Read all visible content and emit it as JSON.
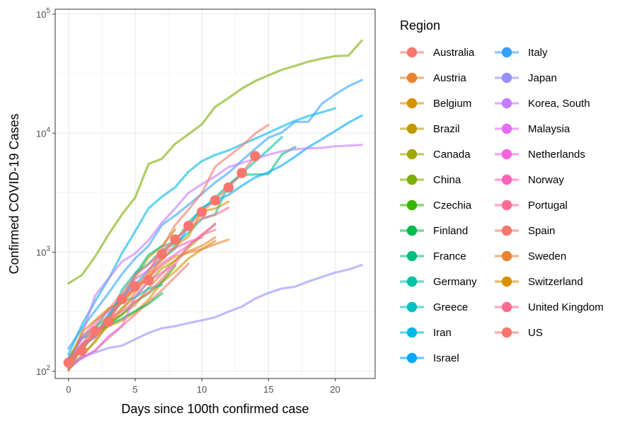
{
  "chart_data": {
    "type": "line",
    "xlabel": "Days since 100th confirmed case",
    "ylabel": "Confirmed COVID-19 Cases",
    "yscale": "log10",
    "xlim": [
      -1,
      23
    ],
    "ylim": [
      87,
      110000
    ],
    "x_ticks": [
      0,
      5,
      10,
      15,
      20
    ],
    "y_ticks": [
      {
        "value": 100,
        "base": "10",
        "exp": "2"
      },
      {
        "value": 1000,
        "base": "10",
        "exp": "3"
      },
      {
        "value": 10000,
        "base": "10",
        "exp": "4"
      },
      {
        "value": 100000,
        "base": "10",
        "exp": "5"
      }
    ],
    "grid": true,
    "legend": {
      "title": "Region",
      "placement": "right",
      "columns": 2
    },
    "series": [
      {
        "name": "Australia",
        "color": "#F8766D",
        "x": [
          0,
          1,
          2,
          3,
          4,
          5,
          6,
          7,
          8,
          9
        ],
        "y": [
          112,
          128,
          150,
          190,
          240,
          300,
          380,
          480,
          620,
          800
        ]
      },
      {
        "name": "Austria",
        "color": "#EA8331",
        "x": [
          0,
          1,
          2,
          3,
          4,
          5,
          6,
          7,
          8,
          9,
          10,
          11
        ],
        "y": [
          104,
          131,
          182,
          246,
          302,
          361,
          504,
          655,
          860,
          1018,
          1132,
          1332
        ]
      },
      {
        "name": "Belgium",
        "color": "#D89000",
        "x": [
          0,
          1,
          2,
          3,
          4,
          5,
          6,
          7,
          8,
          9,
          10,
          11
        ],
        "y": [
          109,
          169,
          200,
          239,
          267,
          314,
          399,
          559,
          689,
          886,
          1058,
          1243
        ]
      },
      {
        "name": "Brazil",
        "color": "#C09B00",
        "x": [
          0,
          1,
          2,
          3,
          4,
          5,
          6,
          7,
          8
        ],
        "y": [
          121,
          200,
          234,
          291,
          428,
          621,
          904,
          1128,
          1546
        ]
      },
      {
        "name": "Canada",
        "color": "#A3A500",
        "x": [
          0,
          1,
          2,
          3,
          4,
          5,
          6,
          7,
          8,
          9,
          10,
          11
        ],
        "y": [
          103,
          138,
          176,
          252,
          342,
          415,
          569,
          727,
          846,
          1087,
          1377,
          1739
        ]
      },
      {
        "name": "China",
        "color": "#7CAE00",
        "x": [
          0,
          1,
          2,
          3,
          4,
          5,
          6,
          7,
          8,
          9,
          10,
          11,
          12,
          13,
          14,
          15,
          16,
          17,
          18,
          19,
          20,
          21,
          22
        ],
        "y": [
          548,
          643,
          920,
          1406,
          2075,
          2877,
          5509,
          6087,
          8141,
          9802,
          11891,
          16630,
          19716,
          23707,
          27440,
          30587,
          34110,
          36814,
          39829,
          42354,
          44386,
          44759,
          59895
        ]
      },
      {
        "name": "Czechia",
        "color": "#39B600",
        "x": [
          0,
          1,
          2,
          3,
          4,
          5,
          6,
          7,
          8
        ],
        "y": [
          116,
          150,
          214,
          253,
          298,
          383,
          450,
          560,
          765
        ]
      },
      {
        "name": "Finland",
        "color": "#00BB4E",
        "x": [
          0,
          1,
          2,
          3,
          4,
          5,
          6,
          7
        ],
        "y": [
          109,
          155,
          210,
          244,
          277,
          321,
          369,
          450
        ]
      },
      {
        "name": "France",
        "color": "#00BF7D",
        "x": [
          0,
          1,
          2,
          3,
          4,
          5,
          6,
          7,
          8,
          9,
          10,
          11,
          12,
          13,
          14,
          15,
          16,
          17
        ],
        "y": [
          130,
          191,
          204,
          285,
          377,
          653,
          949,
          1126,
          1209,
          1784,
          2281,
          2876,
          3661,
          4469,
          4499,
          4523,
          6633,
          7652
        ]
      },
      {
        "name": "Germany",
        "color": "#00C1A3",
        "x": [
          0,
          1,
          2,
          3,
          4,
          5,
          6,
          7,
          8,
          9,
          10,
          11,
          12,
          13,
          14,
          15,
          16
        ],
        "y": [
          130,
          159,
          196,
          262,
          482,
          670,
          799,
          1040,
          1176,
          1457,
          1908,
          2078,
          3675,
          4585,
          5795,
          7272,
          9257
        ]
      },
      {
        "name": "Greece",
        "color": "#00BFC4",
        "x": [
          0,
          1,
          2,
          3,
          4,
          5,
          6,
          7
        ],
        "y": [
          117,
          190,
          228,
          331,
          387,
          418,
          495,
          530
        ]
      },
      {
        "name": "Iran",
        "color": "#00B8E7",
        "x": [
          0,
          1,
          2,
          3,
          4,
          5,
          6,
          7,
          8,
          9,
          10,
          11,
          12,
          13,
          14,
          15,
          16,
          17,
          18,
          19,
          20
        ],
        "y": [
          139,
          245,
          388,
          593,
          978,
          1501,
          2336,
          2922,
          3513,
          4747,
          5823,
          6566,
          7161,
          8042,
          9000,
          10075,
          11364,
          12729,
          13938,
          14991,
          16169
        ]
      },
      {
        "name": "Israel",
        "color": "#00A9FF",
        "x": [
          0,
          1,
          2,
          3,
          4,
          5,
          6,
          7,
          8,
          9,
          10,
          11,
          12,
          13,
          14,
          15,
          16,
          17,
          18,
          19,
          20,
          21,
          22
        ],
        "y": [
          127,
          161,
          200,
          300,
          427,
          529,
          712,
          883,
          1071,
          1656,
          2369,
          2693,
          3035,
          3619,
          4247,
          4695,
          5358,
          6360,
          7645,
          8904,
          10408,
          12240,
          14063
        ]
      },
      {
        "name": "Italy",
        "color": "#35A2FF",
        "x": [
          0,
          1,
          2,
          3,
          4,
          5,
          6,
          7,
          8,
          9,
          10,
          11,
          12,
          13,
          14,
          15,
          16,
          17,
          18,
          19,
          20,
          21,
          22
        ],
        "y": [
          155,
          229,
          322,
          453,
          655,
          888,
          1128,
          1694,
          2036,
          2502,
          3089,
          3858,
          4636,
          5883,
          7375,
          9172,
          10149,
          12462,
          12462,
          17660,
          21157,
          24747,
          27980
        ]
      },
      {
        "name": "Japan",
        "color": "#9590FF",
        "x": [
          0,
          1,
          2,
          3,
          4,
          5,
          6,
          7,
          8,
          9,
          10,
          11,
          12,
          13,
          14,
          15,
          16,
          17,
          18,
          19,
          20,
          21,
          22
        ],
        "y": [
          105,
          132,
          144,
          157,
          164,
          186,
          210,
          230,
          239,
          254,
          268,
          284,
          317,
          349,
          408,
          455,
          496,
          514,
          568,
          620,
          675,
          716,
          780
        ]
      },
      {
        "name": "Korea, South",
        "color": "#C77CFF",
        "x": [
          0,
          1,
          2,
          3,
          4,
          5,
          6,
          7,
          8,
          9,
          10,
          11,
          12,
          13,
          14,
          15,
          16,
          17,
          18,
          19,
          20,
          21,
          22
        ],
        "y": [
          104,
          204,
          433,
          602,
          833,
          977,
          1261,
          1766,
          2337,
          3150,
          3736,
          4335,
          5186,
          5621,
          6088,
          6593,
          7041,
          7314,
          7478,
          7513,
          7755,
          7869,
          7979
        ]
      },
      {
        "name": "Malaysia",
        "color": "#E76BF3",
        "x": [
          0,
          1,
          2,
          3,
          4,
          5,
          6,
          7,
          8
        ],
        "y": [
          117,
          129,
          149,
          197,
          238,
          428,
          566,
          673,
          790
        ]
      },
      {
        "name": "Netherlands",
        "color": "#FA62DB",
        "x": [
          0,
          1,
          2,
          3,
          4,
          5,
          6,
          7,
          8,
          9,
          10,
          11
        ],
        "y": [
          128,
          188,
          265,
          321,
          382,
          503,
          614,
          804,
          959,
          1135,
          1413,
          1705
        ]
      },
      {
        "name": "Norway",
        "color": "#FF62BC",
        "x": [
          0,
          1,
          2,
          3,
          4,
          5,
          6,
          7,
          8,
          9,
          10
        ],
        "y": [
          113,
          169,
          192,
          277,
          400,
          598,
          702,
          996,
          1090,
          1221,
          1333
        ]
      },
      {
        "name": "Portugal",
        "color": "#FF6C91",
        "x": [
          0,
          1,
          2,
          3,
          4,
          5,
          6,
          7,
          8,
          9,
          10,
          11,
          12
        ],
        "y": [
          112,
          169,
          245,
          331,
          448,
          642,
          785,
          1020,
          1280,
          1600,
          1920,
          2060,
          2362
        ]
      },
      {
        "name": "Spain",
        "color": "#F8766D",
        "x": [
          0,
          1,
          2,
          3,
          4,
          5,
          6,
          7,
          8,
          9,
          10,
          11,
          12,
          13,
          14,
          15
        ],
        "y": [
          120,
          165,
          222,
          259,
          400,
          500,
          673,
          1073,
          1695,
          2277,
          3146,
          5232,
          6391,
          7798,
          9942,
          11748
        ]
      },
      {
        "name": "Sweden",
        "color": "#EA8331",
        "x": [
          0,
          1,
          2,
          3,
          4,
          5,
          6,
          7,
          8,
          9,
          10,
          11,
          12
        ],
        "y": [
          101,
          161,
          203,
          248,
          326,
          461,
          620,
          771,
          924,
          992,
          1059,
          1167,
          1279
        ]
      },
      {
        "name": "Switzerland",
        "color": "#D89000",
        "x": [
          0,
          1,
          2,
          3,
          4,
          5,
          6,
          7,
          8,
          9,
          10,
          11,
          12
        ],
        "y": [
          120,
          214,
          268,
          337,
          374,
          491,
          652,
          858,
          1125,
          1359,
          2200,
          2330,
          2650
        ]
      },
      {
        "name": "United Kingdom",
        "color": "#FF6C91",
        "x": [
          0,
          1,
          2,
          3,
          4,
          5,
          6,
          7,
          8,
          9,
          10,
          11
        ],
        "y": [
          116,
          164,
          207,
          274,
          322,
          384,
          459,
          596,
          797,
          1140,
          1391,
          1543
        ]
      },
      {
        "name": "US",
        "color": "#F8766D",
        "x": [
          0,
          1,
          2,
          3,
          4,
          5,
          6,
          7,
          8,
          9,
          10,
          11,
          12,
          13,
          14
        ],
        "y": [
          118,
          149,
          217,
          262,
          402,
          518,
          583,
          959,
          1281,
          1663,
          2179,
          2726,
          3499,
          4632,
          6421
        ]
      }
    ]
  }
}
